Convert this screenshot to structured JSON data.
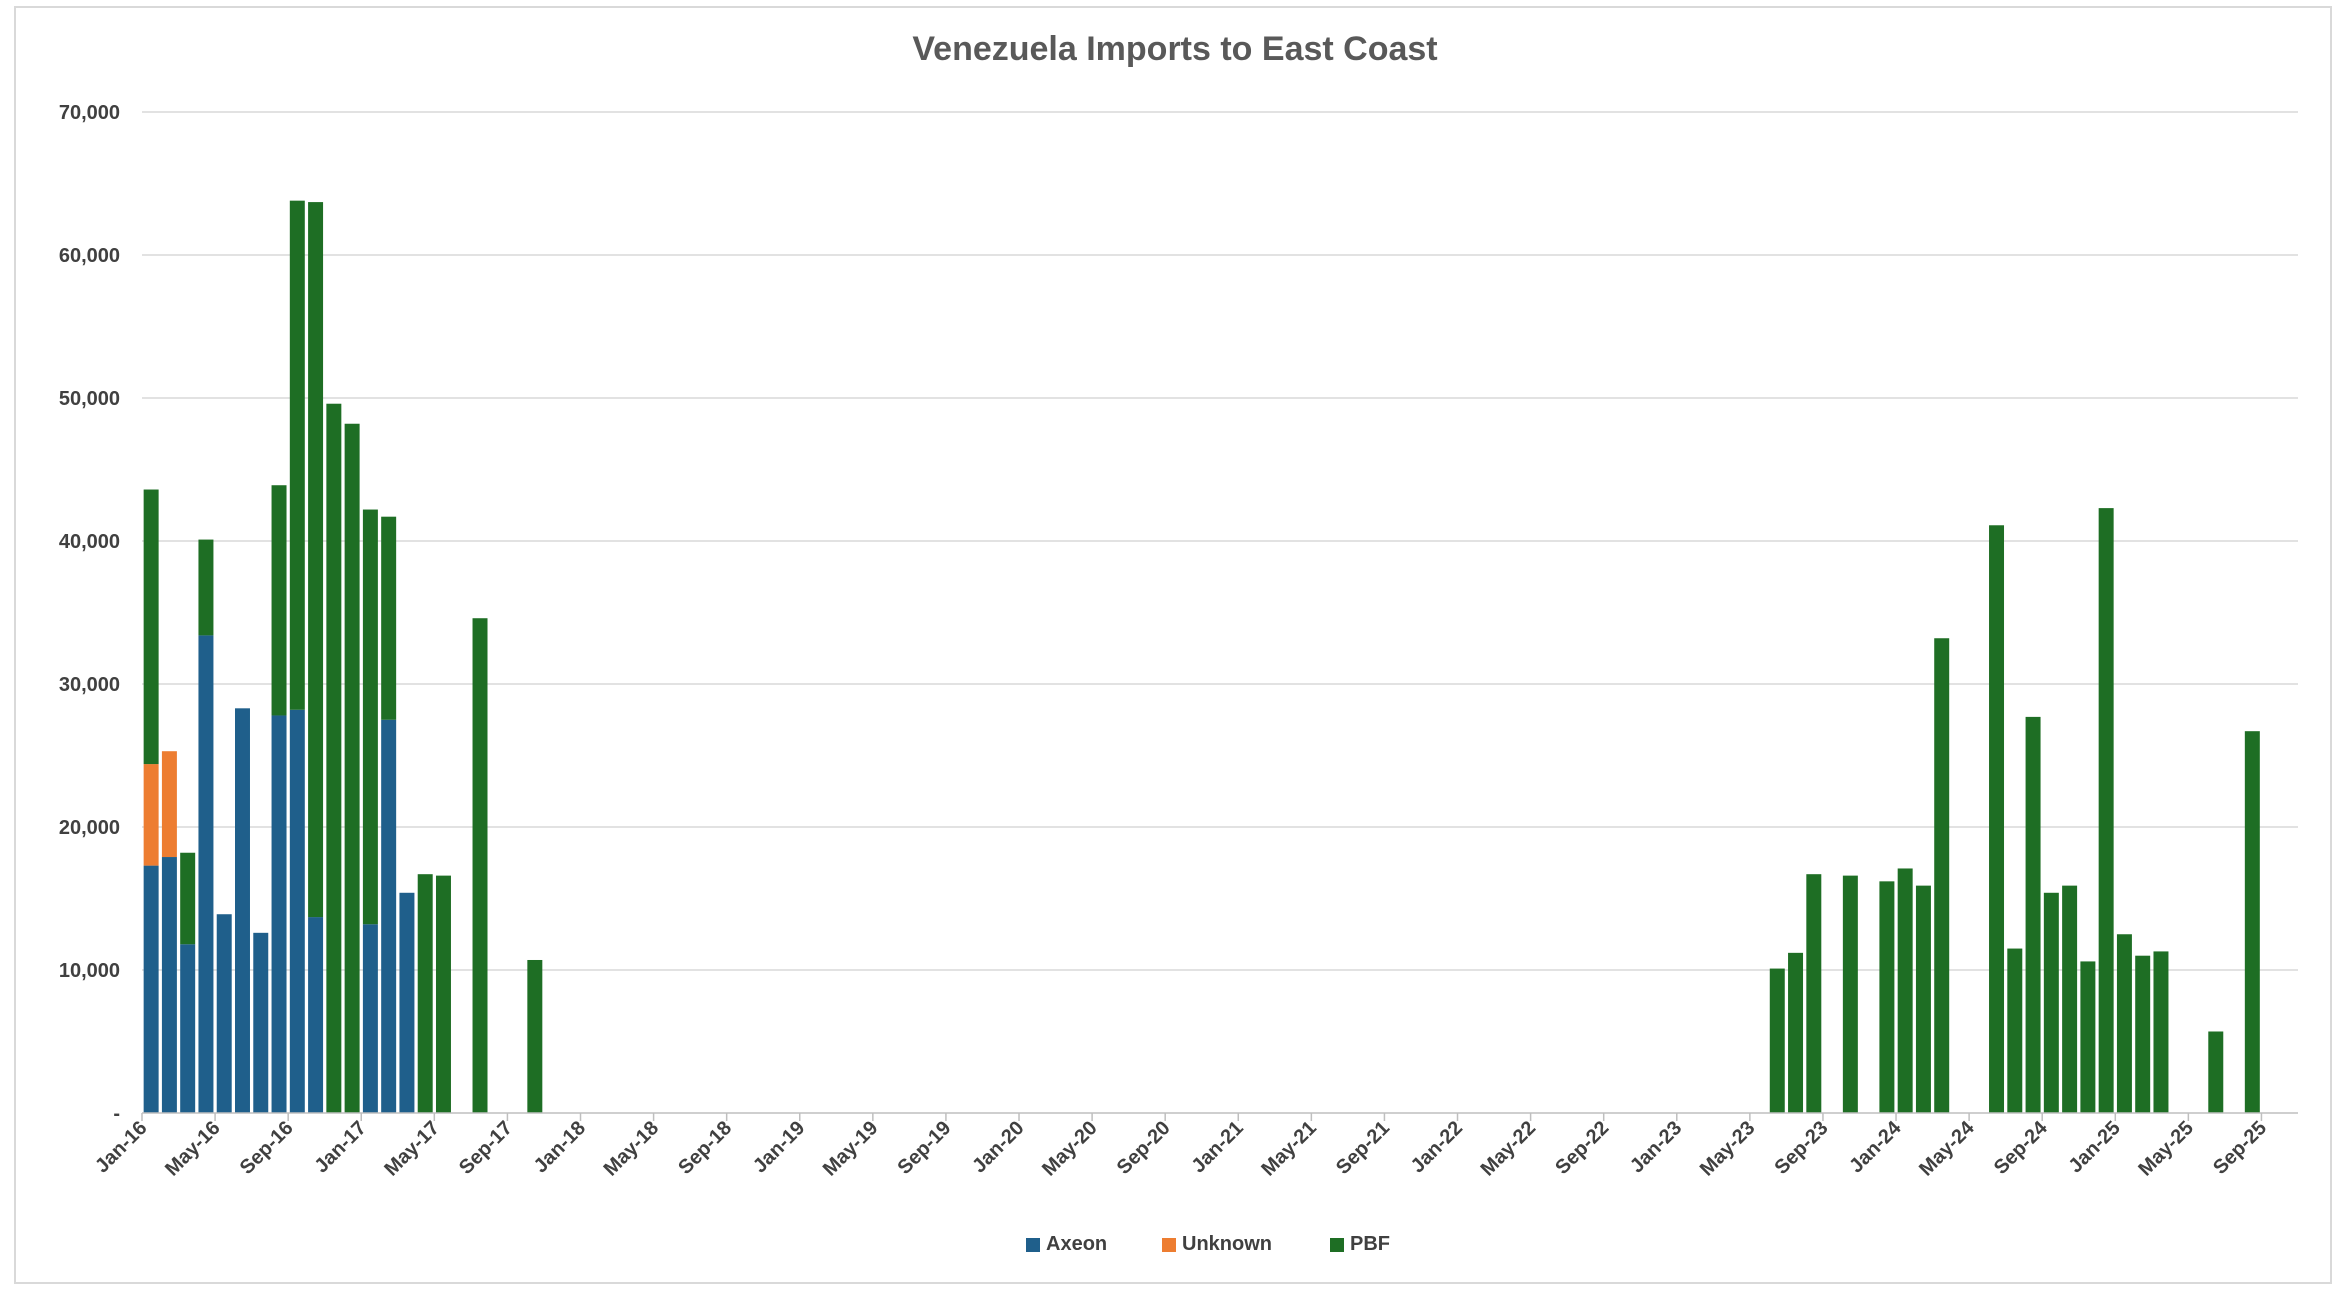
{
  "chart_data": {
    "type": "bar",
    "stacked": true,
    "title": "Venezuela Imports to East Coast",
    "xlabel": "",
    "ylabel": "",
    "ylim": [
      0,
      70000
    ],
    "y_ticks": [
      "-",
      "10,000",
      "20,000",
      "30,000",
      "40,000",
      "50,000",
      "60,000",
      "70,000"
    ],
    "grid": true,
    "legend_position": "bottom",
    "colors": {
      "Axeon": "#1f5f8b",
      "Unknown": "#ed7d31",
      "PBF": "#1e6e24"
    },
    "x_start": "Jan-16",
    "months": [
      "Jan-16",
      "Feb-16",
      "Mar-16",
      "Apr-16",
      "May-16",
      "Jun-16",
      "Jul-16",
      "Aug-16",
      "Sep-16",
      "Oct-16",
      "Nov-16",
      "Dec-16",
      "Jan-17",
      "Feb-17",
      "Mar-17",
      "Apr-17",
      "May-17",
      "Jun-17",
      "Jul-17",
      "Aug-17",
      "Sep-17",
      "Oct-17",
      "Nov-17",
      "Dec-17",
      "Jan-18",
      "Feb-18",
      "Mar-18",
      "Apr-18",
      "May-18",
      "Jun-18",
      "Jul-18",
      "Aug-18",
      "Sep-18",
      "Oct-18",
      "Nov-18",
      "Dec-18",
      "Jan-19",
      "Feb-19",
      "Mar-19",
      "Apr-19",
      "May-19",
      "Jun-19",
      "Jul-19",
      "Aug-19",
      "Sep-19",
      "Oct-19",
      "Nov-19",
      "Dec-19",
      "Jan-20",
      "Feb-20",
      "Mar-20",
      "Apr-20",
      "May-20",
      "Jun-20",
      "Jul-20",
      "Aug-20",
      "Sep-20",
      "Oct-20",
      "Nov-20",
      "Dec-20",
      "Jan-21",
      "Feb-21",
      "Mar-21",
      "Apr-21",
      "May-21",
      "Jun-21",
      "Jul-21",
      "Aug-21",
      "Sep-21",
      "Oct-21",
      "Nov-21",
      "Dec-21",
      "Jan-22",
      "Feb-22",
      "Mar-22",
      "Apr-22",
      "May-22",
      "Jun-22",
      "Jul-22",
      "Aug-22",
      "Sep-22",
      "Oct-22",
      "Nov-22",
      "Dec-22",
      "Jan-23",
      "Feb-23",
      "Mar-23",
      "Apr-23",
      "May-23",
      "Jun-23",
      "Jul-23",
      "Aug-23",
      "Sep-23",
      "Oct-23",
      "Nov-23",
      "Dec-23",
      "Jan-24",
      "Feb-24",
      "Mar-24",
      "Apr-24",
      "May-24",
      "Jun-24",
      "Jul-24",
      "Aug-24",
      "Sep-24",
      "Oct-24",
      "Nov-24",
      "Dec-24",
      "Jan-25",
      "Feb-25",
      "Mar-25",
      "Apr-25",
      "May-25",
      "Jun-25",
      "Jul-25",
      "Aug-25",
      "Sep-25",
      "Oct-25"
    ],
    "x_tick_labels": [
      "Jan-16",
      "May-16",
      "Sep-16",
      "Jan-17",
      "May-17",
      "Sep-17",
      "Jan-18",
      "May-18",
      "Sep-18",
      "Jan-19",
      "May-19",
      "Sep-19",
      "Jan-20",
      "May-20",
      "Sep-20",
      "Jan-21",
      "May-21",
      "Sep-21",
      "Jan-22",
      "May-22",
      "Sep-22",
      "Jan-23",
      "May-23",
      "Sep-23",
      "Jan-24",
      "May-24",
      "Sep-24",
      "Jan-25",
      "May-25",
      "Sep-25"
    ],
    "series": [
      {
        "name": "Axeon",
        "values": [
          17300,
          17900,
          11800,
          33400,
          13900,
          28300,
          12600,
          27800,
          28200,
          13700,
          0,
          0,
          13200,
          27500,
          15400,
          0,
          0,
          0,
          0,
          0,
          0,
          0,
          0,
          0,
          0,
          0,
          0,
          0,
          0,
          0,
          0,
          0,
          0,
          0,
          0,
          0,
          0,
          0,
          0,
          0,
          0,
          0,
          0,
          0,
          0,
          0,
          0,
          0,
          0,
          0,
          0,
          0,
          0,
          0,
          0,
          0,
          0,
          0,
          0,
          0,
          0,
          0,
          0,
          0,
          0,
          0,
          0,
          0,
          0,
          0,
          0,
          0,
          0,
          0,
          0,
          0,
          0,
          0,
          0,
          0,
          0,
          0,
          0,
          0,
          0,
          0,
          0,
          0,
          0,
          0,
          0,
          0,
          0,
          0,
          0,
          0,
          0,
          0,
          0,
          0,
          0,
          0,
          0,
          0,
          0,
          0,
          0,
          0,
          0,
          0,
          0,
          0,
          0,
          0,
          0,
          0,
          0,
          0
        ]
      },
      {
        "name": "Unknown",
        "values": [
          7100,
          7400,
          0,
          0,
          0,
          0,
          0,
          0,
          0,
          0,
          0,
          0,
          0,
          0,
          0,
          0,
          0,
          0,
          0,
          0,
          0,
          0,
          0,
          0,
          0,
          0,
          0,
          0,
          0,
          0,
          0,
          0,
          0,
          0,
          0,
          0,
          0,
          0,
          0,
          0,
          0,
          0,
          0,
          0,
          0,
          0,
          0,
          0,
          0,
          0,
          0,
          0,
          0,
          0,
          0,
          0,
          0,
          0,
          0,
          0,
          0,
          0,
          0,
          0,
          0,
          0,
          0,
          0,
          0,
          0,
          0,
          0,
          0,
          0,
          0,
          0,
          0,
          0,
          0,
          0,
          0,
          0,
          0,
          0,
          0,
          0,
          0,
          0,
          0,
          0,
          0,
          0,
          0,
          0,
          0,
          0,
          0,
          0,
          0,
          0,
          0,
          0,
          0,
          0,
          0,
          0,
          0,
          0,
          0,
          0,
          0,
          0,
          0,
          0,
          0,
          0,
          0,
          0
        ]
      },
      {
        "name": "PBF",
        "values": [
          19200,
          0,
          6400,
          6700,
          0,
          0,
          0,
          16100,
          35600,
          50000,
          49600,
          48200,
          29000,
          14200,
          0,
          16700,
          16600,
          0,
          34600,
          0,
          0,
          10700,
          0,
          0,
          0,
          0,
          0,
          0,
          0,
          0,
          0,
          0,
          0,
          0,
          0,
          0,
          0,
          0,
          0,
          0,
          0,
          0,
          0,
          0,
          0,
          0,
          0,
          0,
          0,
          0,
          0,
          0,
          0,
          0,
          0,
          0,
          0,
          0,
          0,
          0,
          0,
          0,
          0,
          0,
          0,
          0,
          0,
          0,
          0,
          0,
          0,
          0,
          0,
          0,
          0,
          0,
          0,
          0,
          0,
          0,
          0,
          0,
          0,
          0,
          0,
          0,
          0,
          0,
          0,
          10100,
          11200,
          16700,
          0,
          16600,
          0,
          16200,
          17100,
          15900,
          33200,
          0,
          0,
          41100,
          11500,
          27700,
          15400,
          15900,
          10600,
          42300,
          12500,
          11000,
          11300,
          0,
          0,
          5700,
          0,
          26700
        ]
      }
    ]
  }
}
